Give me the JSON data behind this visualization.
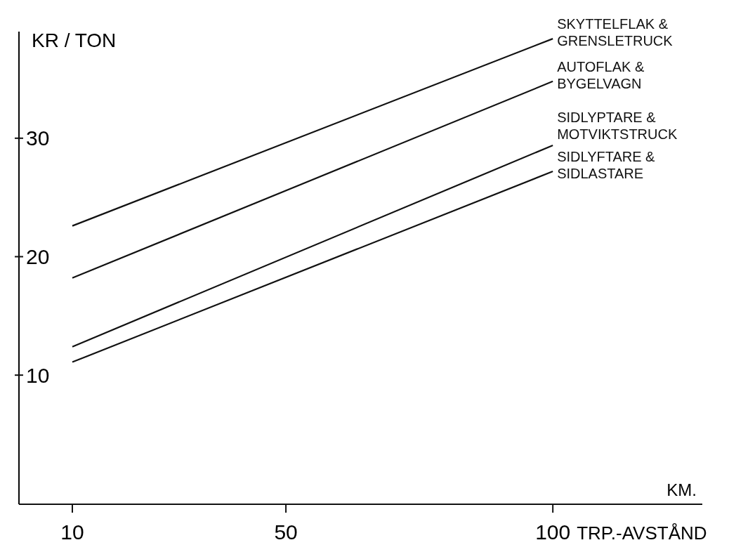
{
  "chart_data": {
    "type": "line",
    "ylabel": "KR / TON",
    "xlabel": "TRP.-AVSTÅND",
    "annotations": [
      "KM."
    ],
    "x": [
      10,
      100
    ],
    "series": [
      {
        "name": "SKYTTELFLAK & GRENSLETRUCK",
        "color": "#111111",
        "values": [
          22.6,
          38.4
        ]
      },
      {
        "name": "AUTOFLAK & BYGELVAGN",
        "color": "#111111",
        "values": [
          18.2,
          34.8
        ]
      },
      {
        "name": "SIDLYPTARE & MOTVIKTSTRUCK",
        "color": "#111111",
        "values": [
          12.4,
          29.4
        ]
      },
      {
        "name": "SIDLYFTARE & SIDLASTARE",
        "color": "#111111",
        "values": [
          11.1,
          27.2
        ]
      }
    ],
    "xlim": [
      0,
      128
    ],
    "ylim": [
      -0.9,
      39
    ],
    "xticks": [
      10,
      50,
      100
    ],
    "yticks": [
      10,
      20,
      30
    ],
    "grid": false,
    "marker": "none",
    "line_style": "solid"
  }
}
